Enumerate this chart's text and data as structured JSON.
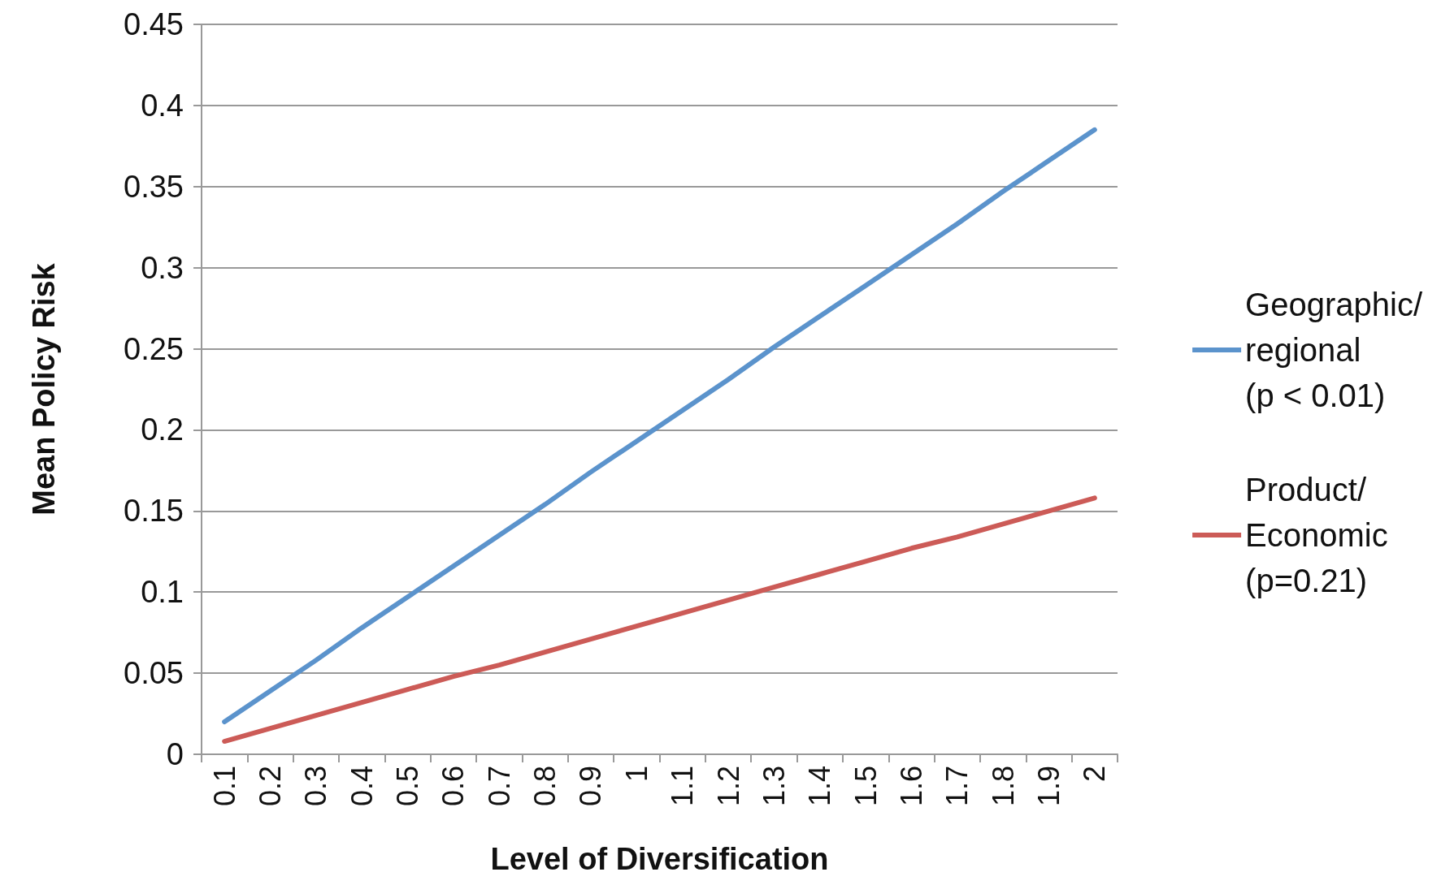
{
  "chart_data": {
    "type": "line",
    "xlabel": "Level of Diversification",
    "ylabel": "Mean Policy Risk",
    "categories": [
      "0.1",
      "0.2",
      "0.3",
      "0.4",
      "0.5",
      "0.6",
      "0.7",
      "0.8",
      "0.9",
      "1",
      "1.1",
      "1.2",
      "1.3",
      "1.4",
      "1.5",
      "1.6",
      "1.7",
      "1.8",
      "1.9",
      "2"
    ],
    "series": [
      {
        "name": "Geographic/\nregional\n(p < 0.01)",
        "color": "#5b93cc",
        "values": [
          0.02,
          0.039,
          0.058,
          0.078,
          0.097,
          0.116,
          0.135,
          0.154,
          0.174,
          0.193,
          0.212,
          0.231,
          0.251,
          0.27,
          0.289,
          0.308,
          0.327,
          0.347,
          0.366,
          0.385
        ]
      },
      {
        "name": "Product/\nEconomic\n(p=0.21)",
        "color": "#cc5b57",
        "values": [
          0.008,
          0.016,
          0.024,
          0.032,
          0.04,
          0.048,
          0.055,
          0.063,
          0.071,
          0.079,
          0.087,
          0.095,
          0.103,
          0.111,
          0.119,
          0.127,
          0.134,
          0.142,
          0.15,
          0.158
        ]
      }
    ],
    "ylim": [
      0,
      0.45
    ],
    "yticks": [
      0,
      0.05,
      0.1,
      0.15,
      0.2,
      0.25,
      0.3,
      0.35,
      0.4,
      0.45
    ],
    "grid": "y",
    "legend": "right",
    "marker": "none",
    "line_style": "solid"
  }
}
